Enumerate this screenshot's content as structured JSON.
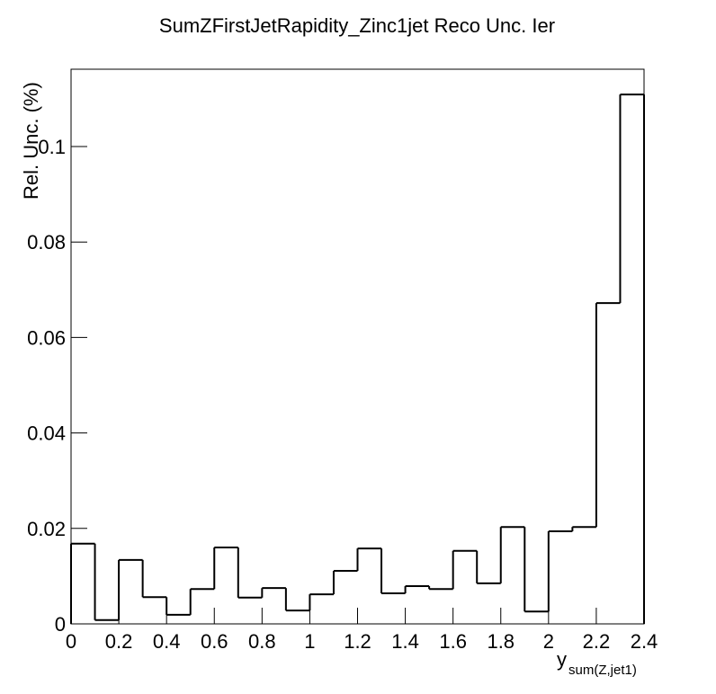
{
  "chart_data": {
    "type": "histogram",
    "title": "SumZFirstJetRapidity_Zinc1jet Reco Unc. Ier",
    "x_label": "y",
    "x_label_sub": "sum(Z,jet1)",
    "y_label": "Rel. Unc. (%)",
    "bins": [
      0,
      0.1,
      0.2,
      0.3,
      0.4,
      0.5,
      0.6,
      0.7,
      0.8,
      0.9,
      1.0,
      1.1,
      1.2,
      1.3,
      1.4,
      1.5,
      1.6,
      1.7,
      1.8,
      1.9,
      2.0,
      2.1,
      2.2,
      2.3,
      2.4
    ],
    "values": [
      0.0168,
      0.0008,
      0.0134,
      0.0056,
      0.0019,
      0.0073,
      0.016,
      0.0055,
      0.0075,
      0.0028,
      0.0062,
      0.0111,
      0.0158,
      0.0064,
      0.0079,
      0.0073,
      0.0153,
      0.0085,
      0.0203,
      0.0026,
      0.0194,
      0.0203,
      0.0672,
      0.1109
    ],
    "color": "#000000",
    "xlim": [
      0,
      2.4
    ],
    "ylim": [
      0,
      0.1162
    ],
    "xticks": [
      0,
      0.2,
      0.4,
      0.6,
      0.8,
      1,
      1.2,
      1.4,
      1.6,
      1.8,
      2,
      2.2,
      2.4
    ],
    "yticks": [
      0,
      0.02,
      0.04,
      0.06,
      0.08,
      0.1
    ]
  }
}
